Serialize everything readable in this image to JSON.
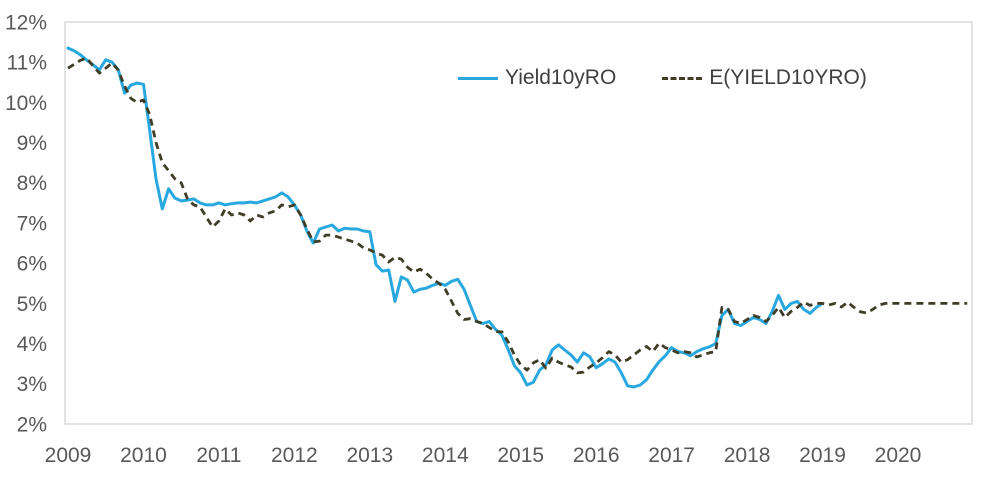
{
  "figure": {
    "kind": "excel-style line chart",
    "background": "#ffffff",
    "plot_border_color": "#d9d9d9",
    "axis_label_color": "#595959",
    "legend_text_color": "#404040"
  },
  "legend": {
    "position": "top-center",
    "items": [
      {
        "label": "Yield10yRO",
        "swatch": "solid-line-swatch",
        "color": "#29a8e0"
      },
      {
        "label": "E(YIELD10YRO)",
        "swatch": "dashed-line-swatch",
        "color": "#403d27"
      }
    ]
  },
  "chart_data": {
    "type": "line",
    "title": "",
    "xlabel": "",
    "ylabel": "",
    "grid": "off",
    "x_frequency": "monthly",
    "x_start": "2009-01",
    "x_tick_labels": [
      "2009",
      "2010",
      "2011",
      "2012",
      "2013",
      "2014",
      "2015",
      "2016",
      "2017",
      "2018",
      "2019",
      "2020"
    ],
    "y_min": 2,
    "y_max": 12,
    "y_tick_step": 1,
    "y_tick_labels": [
      "12%",
      "11%",
      "10%",
      "9%",
      "8%",
      "7%",
      "6%",
      "5%",
      "4%",
      "3%",
      "2%"
    ],
    "series": [
      {
        "name": "Yield10yRO",
        "color": "#29a8e0",
        "line_style": "solid",
        "start": "2009-01",
        "end": "2019-01",
        "values": [
          11.35,
          11.28,
          11.18,
          11.05,
          10.93,
          10.81,
          11.06,
          11.0,
          10.81,
          10.23,
          10.43,
          10.48,
          10.45,
          9.3,
          8.1,
          7.35,
          7.85,
          7.62,
          7.55,
          7.57,
          7.6,
          7.5,
          7.45,
          7.45,
          7.5,
          7.45,
          7.48,
          7.5,
          7.5,
          7.52,
          7.5,
          7.55,
          7.6,
          7.65,
          7.75,
          7.65,
          7.45,
          7.2,
          6.8,
          6.5,
          6.85,
          6.9,
          6.95,
          6.8,
          6.87,
          6.85,
          6.85,
          6.8,
          6.78,
          5.96,
          5.8,
          5.83,
          5.05,
          5.66,
          5.58,
          5.28,
          5.35,
          5.38,
          5.45,
          5.5,
          5.45,
          5.55,
          5.6,
          5.35,
          4.95,
          4.55,
          4.5,
          4.55,
          4.35,
          4.21,
          3.85,
          3.45,
          3.27,
          2.97,
          3.04,
          3.34,
          3.47,
          3.84,
          3.97,
          3.84,
          3.72,
          3.54,
          3.77,
          3.67,
          3.4,
          3.5,
          3.62,
          3.54,
          3.27,
          2.95,
          2.92,
          2.97,
          3.1,
          3.34,
          3.55,
          3.7,
          3.9,
          3.8,
          3.77,
          3.7,
          3.8,
          3.87,
          3.92,
          4.0,
          4.7,
          4.85,
          4.5,
          4.45,
          4.55,
          4.65,
          4.6,
          4.5,
          4.8,
          5.2,
          4.85,
          5.0,
          5.05,
          4.85,
          4.75,
          4.9,
          5.0
        ]
      },
      {
        "name": "E(YIELD10YRO)",
        "color": "#403d27",
        "line_style": "dashed",
        "start": "2009-01",
        "end": "2020-12",
        "values": [
          10.85,
          10.95,
          11.05,
          11.1,
          10.9,
          10.73,
          10.85,
          10.98,
          10.8,
          10.4,
          10.1,
          10.0,
          10.06,
          9.7,
          9.0,
          8.5,
          8.3,
          8.1,
          8.0,
          7.6,
          7.45,
          7.4,
          7.15,
          6.9,
          7.05,
          7.35,
          7.2,
          7.25,
          7.2,
          7.05,
          7.2,
          7.15,
          7.25,
          7.3,
          7.45,
          7.4,
          7.45,
          7.2,
          6.85,
          6.53,
          6.55,
          6.7,
          6.7,
          6.65,
          6.6,
          6.55,
          6.5,
          6.38,
          6.33,
          6.25,
          6.2,
          6.03,
          6.15,
          6.1,
          5.9,
          5.78,
          5.85,
          5.75,
          5.6,
          5.5,
          5.35,
          5.05,
          4.75,
          4.6,
          4.62,
          4.55,
          4.5,
          4.4,
          4.3,
          4.29,
          4.04,
          3.72,
          3.47,
          3.34,
          3.52,
          3.6,
          3.39,
          3.64,
          3.54,
          3.47,
          3.42,
          3.27,
          3.29,
          3.42,
          3.52,
          3.65,
          3.8,
          3.72,
          3.54,
          3.6,
          3.72,
          3.84,
          3.93,
          3.8,
          4.01,
          3.9,
          3.84,
          3.77,
          3.8,
          3.77,
          3.67,
          3.72,
          3.77,
          3.8,
          4.9,
          4.85,
          4.55,
          4.5,
          4.6,
          4.7,
          4.65,
          4.55,
          4.7,
          4.9,
          4.65,
          4.8,
          4.9,
          5.03,
          4.95,
          5.0,
          5.0,
          4.96,
          5.0,
          4.91,
          5.03,
          4.9,
          4.79,
          4.76,
          4.85,
          4.96,
          5.0,
          5.0,
          5.0,
          5.0,
          5.0,
          5.0,
          5.0,
          5.0,
          5.0,
          5.0,
          5.0,
          5.0,
          5.0,
          5.0
        ]
      }
    ]
  }
}
